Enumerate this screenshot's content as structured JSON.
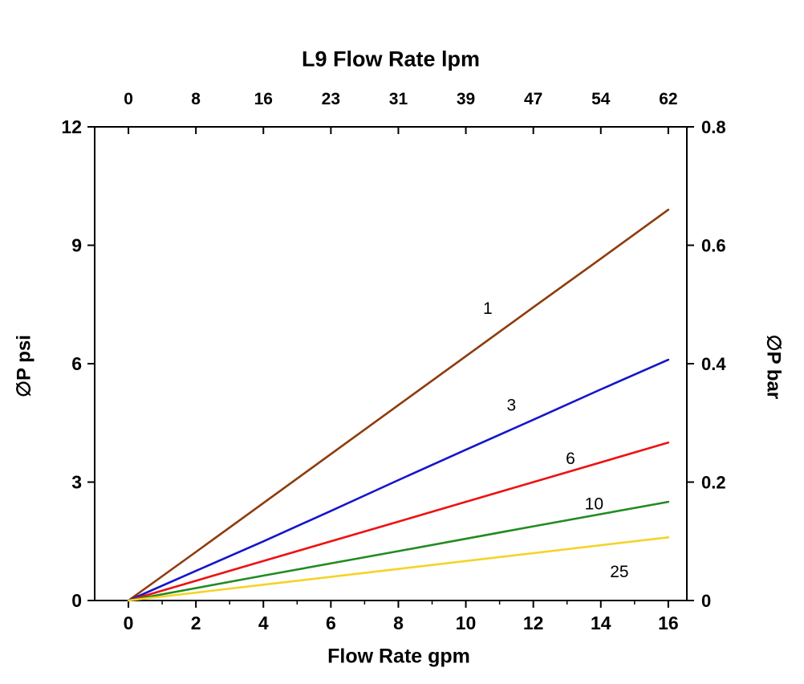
{
  "chart_data": {
    "type": "line",
    "title": "L9 Flow Rate lpm",
    "xlabel": "Flow Rate gpm",
    "ylabel_left": "∅P psi",
    "ylabel_right": "∅P bar",
    "axis_color": "#000000",
    "grid": false,
    "axes": {
      "x_bottom": {
        "label": "Flow Rate gpm",
        "units": "gpm",
        "ticks": [
          0,
          2,
          4,
          6,
          8,
          10,
          12,
          14,
          16
        ],
        "minor_ticks": [
          1,
          3,
          5,
          7,
          9,
          11,
          13,
          15
        ],
        "range": [
          0,
          16
        ]
      },
      "x_top": {
        "label": "L9 Flow Rate lpm",
        "units": "lpm",
        "tick_labels": [
          "0",
          "8",
          "16",
          "23",
          "31",
          "39",
          "47",
          "54",
          "62"
        ],
        "tick_positions_gpm": [
          0,
          2,
          4,
          6,
          8,
          10,
          12,
          14,
          16
        ]
      },
      "y_left": {
        "label": "∅P psi",
        "units": "psi",
        "ticks": [
          0,
          3,
          6,
          9,
          12
        ],
        "range": [
          0,
          12
        ]
      },
      "y_right": {
        "label": "∅P bar",
        "units": "bar",
        "tick_labels": [
          "0",
          "0.2",
          "0.4",
          "0.6",
          "0.8"
        ],
        "tick_values": [
          0,
          0.2,
          0.4,
          0.6,
          0.8
        ],
        "range": [
          0,
          0.8
        ]
      }
    },
    "series": [
      {
        "label": "1",
        "color": "#8f3b0c",
        "x": [
          0,
          2,
          4,
          6,
          8,
          10,
          12,
          14,
          16
        ],
        "y": [
          0,
          1.23,
          2.47,
          3.71,
          4.95,
          6.19,
          7.43,
          8.66,
          9.9
        ],
        "label_pos": {
          "x": 10.65,
          "y": 7.4
        }
      },
      {
        "label": "3",
        "color": "#1515cc",
        "x": [
          0,
          2,
          4,
          6,
          8,
          10,
          12,
          14,
          16
        ],
        "y": [
          0,
          0.75,
          1.5,
          2.27,
          3.05,
          3.82,
          4.58,
          5.35,
          6.1
        ],
        "label_pos": {
          "x": 11.35,
          "y": 4.95
        }
      },
      {
        "label": "6",
        "color": "#ee1111",
        "x": [
          0,
          4,
          8,
          12,
          16
        ],
        "y": [
          0,
          1.0,
          2.0,
          3.0,
          4.0
        ],
        "label_pos": {
          "x": 13.1,
          "y": 3.6
        }
      },
      {
        "label": "10",
        "color": "#228b22",
        "x": [
          0,
          4,
          8,
          12,
          16
        ],
        "y": [
          0,
          0.63,
          1.25,
          1.88,
          2.5
        ],
        "label_pos": {
          "x": 13.8,
          "y": 2.45
        }
      },
      {
        "label": "25",
        "color": "#f5d327",
        "x": [
          0,
          4,
          8,
          12,
          16
        ],
        "y": [
          0,
          0.4,
          0.8,
          1.2,
          1.6
        ],
        "label_pos": {
          "x": 14.55,
          "y": 0.73
        }
      }
    ]
  }
}
